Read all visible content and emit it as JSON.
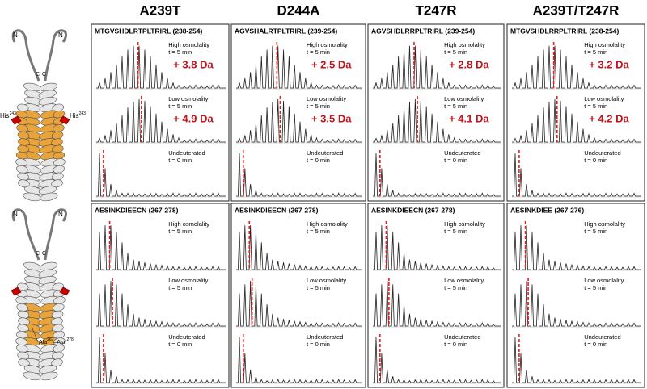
{
  "columns": [
    {
      "header": "A239T",
      "panels": [
        {
          "peptide": "MTGVSHDLRTPLTRIRL (238-254)",
          "traces": [
            {
              "condition": "High osmolality",
              "time": "t = 5 min",
              "shift": "+ 3.8 Da"
            },
            {
              "condition": "Low osmolality",
              "time": "t = 5 min",
              "shift": "+ 4.9 Da"
            },
            {
              "condition": "Undeuterated",
              "time": "t = 0 min"
            }
          ]
        },
        {
          "peptide": "AESINKDIEECN (267-278)",
          "traces": [
            {
              "condition": "High osmolality",
              "time": "t = 5 min"
            },
            {
              "condition": "Low osmolality",
              "time": "t = 5 min"
            },
            {
              "condition": "Undeuterated",
              "time": "t = 0 min"
            }
          ]
        }
      ]
    },
    {
      "header": "D244A",
      "panels": [
        {
          "peptide": "AGVSHALRTPLTRIRL (239-254)",
          "traces": [
            {
              "condition": "High osmolality",
              "time": "t = 5 min",
              "shift": "+ 2.5 Da"
            },
            {
              "condition": "Low osmolality",
              "time": "t = 5 min",
              "shift": "+ 3.5 Da"
            },
            {
              "condition": "Undeuterated",
              "time": "t = 0 min"
            }
          ]
        },
        {
          "peptide": "AESINKDIEECN (267-278)",
          "traces": [
            {
              "condition": "High osmolality",
              "time": "t = 5 min"
            },
            {
              "condition": "Low osmolality",
              "time": "t = 5 min"
            },
            {
              "condition": "Undeuterated",
              "time": "t = 0 min"
            }
          ]
        }
      ]
    },
    {
      "header": "T247R",
      "panels": [
        {
          "peptide": "AGVSHDLRRPLTRIRL (239-254)",
          "traces": [
            {
              "condition": "High osmolality",
              "time": "t = 5 min",
              "shift": "+ 2.8 Da"
            },
            {
              "condition": "Low osmolality",
              "time": "t = 5 min",
              "shift": "+ 4.1 Da"
            },
            {
              "condition": "Undeuterated",
              "time": "t = 0 min"
            }
          ]
        },
        {
          "peptide": "AESINKDIEECN (267-278)",
          "traces": [
            {
              "condition": "High osmolality",
              "time": "t = 5 min"
            },
            {
              "condition": "Low osmolality",
              "time": "t = 5 min"
            },
            {
              "condition": "Undeuterated",
              "time": "t = 0 min"
            }
          ]
        }
      ]
    },
    {
      "header": "A239T/T247R",
      "panels": [
        {
          "peptide": "MTGVSHDLRRPLTRIRL  (238-254)",
          "traces": [
            {
              "condition": "High osmolality",
              "time": "t = 5 min",
              "shift": "+ 3.2 Da"
            },
            {
              "condition": "Low osmolality",
              "time": "t = 5 min",
              "shift": "+ 4.2 Da"
            },
            {
              "condition": "Undeuterated",
              "time": "t = 0 min"
            }
          ]
        },
        {
          "peptide": "AESINKDIEE (267-276)",
          "traces": [
            {
              "condition": "High osmolality",
              "time": "t = 5 min"
            },
            {
              "condition": "Low osmolality",
              "time": "t = 5 min"
            },
            {
              "condition": "Undeuterated",
              "time": "t = 0 min"
            }
          ]
        }
      ]
    }
  ],
  "structures": [
    {
      "n": "N",
      "c": "C",
      "labels": [
        {
          "name": "His",
          "num": "243"
        },
        {
          "name": "His",
          "num": "243"
        }
      ]
    },
    {
      "n": "N",
      "c": "C",
      "labels": [
        {
          "name": "Ala",
          "num": "267",
          "sep": "–Asn",
          "num2": "278"
        }
      ]
    }
  ]
}
